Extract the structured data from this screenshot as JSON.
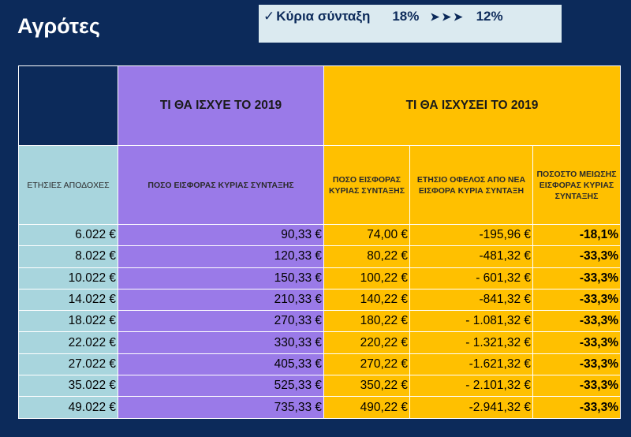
{
  "title": "Αγρότες",
  "callout": {
    "check": "✓",
    "label": "Κύρια σύνταξη",
    "rate_old": "18%",
    "arrows": "➤➤➤",
    "rate_new": "12%"
  },
  "table": {
    "group_headers": {
      "current": "ΤΙ ΘΑ ΙΣΧΥΕ ΤΟ 2019",
      "new": "ΤΙ ΘΑ ΙΣΧΥΣΕΙ ΤΟ 2019"
    },
    "columns": [
      "ΕΤΗΣΙΕΣ ΑΠΟΔΟΧΕΣ",
      "ΠΟΣΟ ΕΙΣΦΟΡΑΣ ΚΥΡΙΑΣ ΣΥΝΤΑΞΗΣ",
      "ΠΟΣΟ ΕΙΣΦΟΡΑΣ ΚΥΡΙΑΣ ΣΥΝΤΑΞΗΣ",
      "ΕΤΗΣΙΟ ΟΦΕΛΟΣ ΑΠΟ ΝΕΑ ΕΙΣΦΟΡΑ ΚΥΡΙΑ ΣΥΝΤΑΞΗ",
      "ΠΟΣΟΣΤΟ ΜΕΙΩΣΗΣ ΕΙΣΦΟΡΑΣ ΚΥΡΙΑΣ ΣΥΝΤΑΞΗΣ"
    ],
    "rows": [
      [
        "6.022 €",
        "90,33 €",
        "74,00 €",
        "-195,96 €",
        "-18,1%"
      ],
      [
        "8.022 €",
        "120,33 €",
        "80,22 €",
        "-481,32 €",
        "-33,3%"
      ],
      [
        "10.022 €",
        "150,33 €",
        "100,22 €",
        "- 601,32 €",
        "-33,3%"
      ],
      [
        "14.022 €",
        "210,33 €",
        "140,22 €",
        "-841,32 €",
        "-33,3%"
      ],
      [
        "18.022 €",
        "270,33 €",
        "180,22 €",
        "- 1.081,32 €",
        "-33,3%"
      ],
      [
        "22.022 €",
        "330,33 €",
        "220,22 €",
        "- 1.321,32 €",
        "-33,3%"
      ],
      [
        "27.022 €",
        "405,33 €",
        "270,22 €",
        "-1.621,32 €",
        "-33,3%"
      ],
      [
        "35.022 €",
        "525,33 €",
        "350,22 €",
        "-  2.101,32 €",
        "-33,3%"
      ],
      [
        "49.022 €",
        "735,33 €",
        "490,22 €",
        "-2.941,32 €",
        "-33,3%"
      ]
    ]
  },
  "colors": {
    "background": "#0c2a5a",
    "current_column": "#9a7ae8",
    "new_columns": "#ffc000",
    "income_column": "#a8d5dd",
    "callout": "#dbeaf0"
  }
}
